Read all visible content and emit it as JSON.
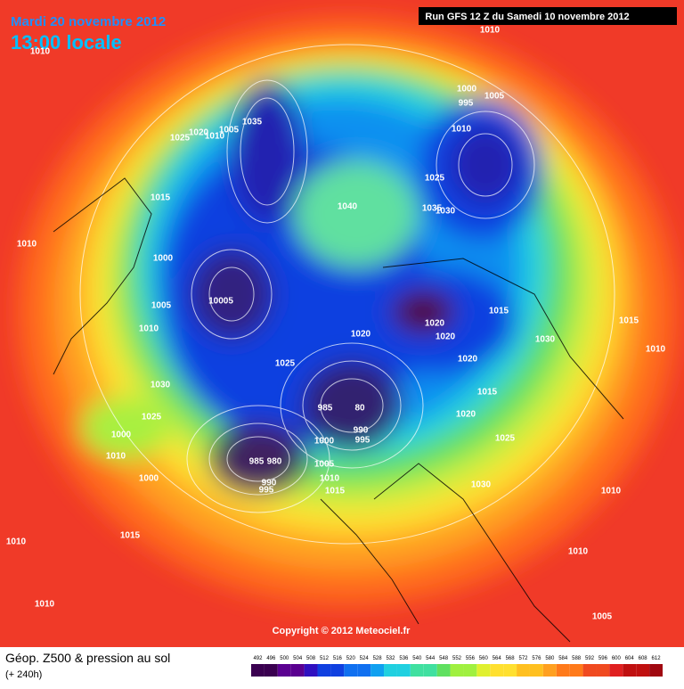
{
  "header": {
    "date": "Mardi 20 novembre 2012",
    "time": "13:00 locale",
    "run": "Run GFS 12 Z du Samedi 10 novembre 2012"
  },
  "footer": {
    "title": "Géop. Z500 & pression au sol",
    "subtitle": "(+ 240h)",
    "copyright": "Copyright © 2012 Meteociel.fr"
  },
  "legend": {
    "values": [
      492,
      496,
      500,
      504,
      508,
      512,
      516,
      520,
      524,
      528,
      532,
      536,
      540,
      544,
      548,
      552,
      556,
      560,
      564,
      568,
      572,
      576,
      580,
      584,
      588,
      592,
      596,
      600,
      604,
      608,
      612
    ]
  },
  "isobar_labels": [
    "1010",
    "1010",
    "1000",
    "1005",
    "995",
    "1010",
    "1025",
    "1020",
    "1010",
    "1005",
    "1035",
    "1025",
    "1015",
    "1040",
    "1035",
    "1030",
    "1010",
    "1000",
    "1005",
    "10005",
    "1010",
    "1020",
    "1015",
    "1020",
    "1020",
    "1015",
    "1030",
    "1010",
    "1025",
    "1020",
    "1015",
    "1030",
    "1025",
    "985",
    "80",
    "1000",
    "990",
    "995",
    "1000",
    "1020",
    "1025",
    "985",
    "980",
    "990",
    "995",
    "1005",
    "1010",
    "1015",
    "1000",
    "1010",
    "1010",
    "1030",
    "1015",
    "1010",
    "1010",
    "1010",
    "1005"
  ]
}
